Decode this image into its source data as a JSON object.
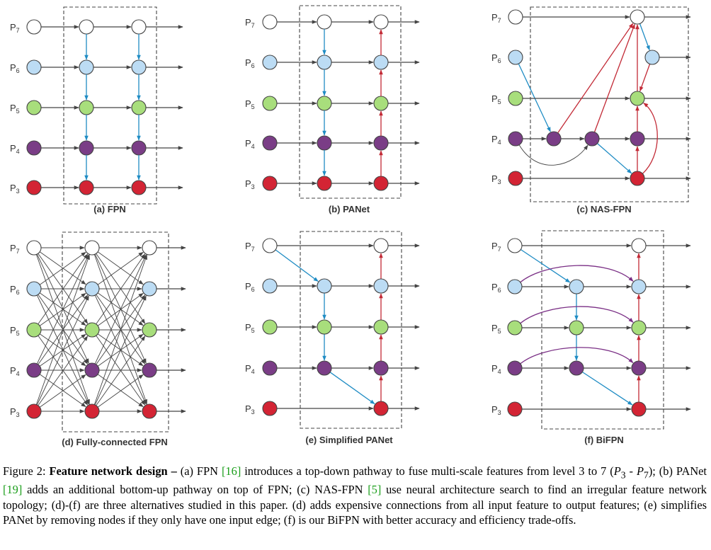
{
  "palette": {
    "P7": "#ffffff",
    "P6": "#bcdcf4",
    "P5": "#a8de7c",
    "P4": "#7a3d86",
    "P3": "#d32434",
    "stroke": "#444444",
    "gray_edge": "#444444",
    "blue_edge": "#1f8cc4",
    "red_edge": "#c22a36",
    "purple_edge": "#7a2f85"
  },
  "level_labels": [
    {
      "main": "P",
      "sub": "7"
    },
    {
      "main": "P",
      "sub": "6"
    },
    {
      "main": "P",
      "sub": "5"
    },
    {
      "main": "P",
      "sub": "4"
    },
    {
      "main": "P",
      "sub": "3"
    }
  ],
  "panels": [
    {
      "id": "fpn",
      "title": "(a) FPN"
    },
    {
      "id": "panet",
      "title": "(b) PANet"
    },
    {
      "id": "nasfpn",
      "title": "(c) NAS-FPN"
    },
    {
      "id": "fc",
      "title": "(d) Fully-connected FPN"
    },
    {
      "id": "spanet",
      "title": "(e) Simplified PANet"
    },
    {
      "id": "bifpn",
      "title": "(f) BiFPN"
    }
  ],
  "caption": {
    "figure_label": "Figure 2:",
    "bold_title": "Feature network design –",
    "a_pre": "(a) FPN",
    "a_ref": "[16]",
    "a_post": "introduces a top-down pathway to fuse multi-scale features from level 3 to 7 (",
    "range_p3": "P",
    "range_p3_sub": "3",
    "range_dash": " - ",
    "range_p7": "P",
    "range_p7_sub": "7",
    "range_close": ");",
    "b_pre": "(b) PANet",
    "b_ref": "[19]",
    "b_post": "adds an additional bottom-up pathway on top of FPN; (c) NAS-FPN",
    "c_ref": "[5]",
    "c_post": "use neural architecture search to find an irregular feature network topology; (d)-(f) are three alternatives studied in this paper. (d) adds expensive connections from all input feature to output features; (e) simplifies PANet by removing nodes if they only have one input edge; (f) is our BiFPN with better accuracy and efficiency trade-offs."
  }
}
